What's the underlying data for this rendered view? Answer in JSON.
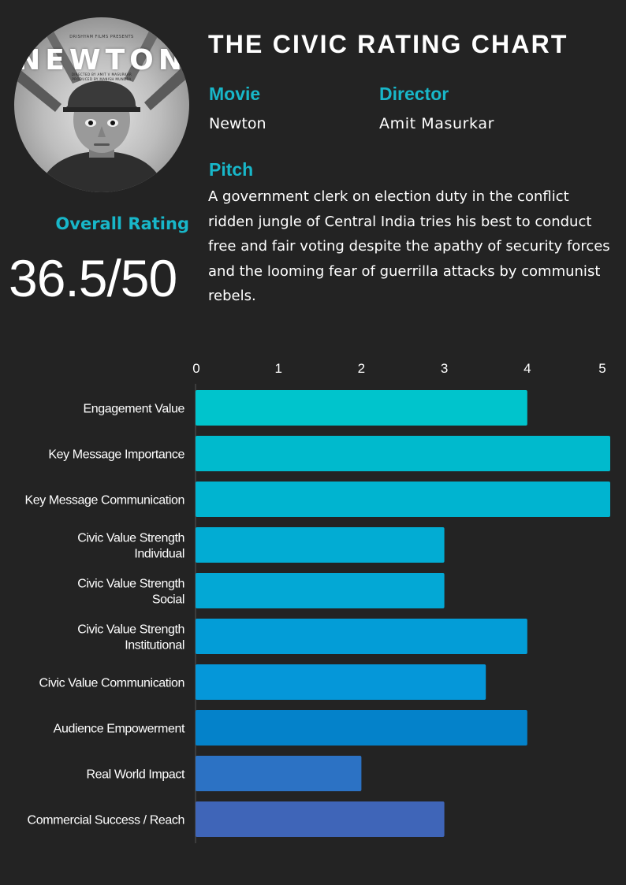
{
  "header": {
    "title": "THE CIVIC RATING CHART"
  },
  "poster": {
    "studio": "DRISHYAM FILMS PRESENTS",
    "title": "NEWTON",
    "credit_1": "DIRECTED BY AMIT V MASURKAR",
    "credit_2": "PRODUCED BY MANISH MUNDRA"
  },
  "movie": {
    "label": "Movie",
    "value": "Newton"
  },
  "director": {
    "label": "Director",
    "value": "Amit Masurkar"
  },
  "pitch": {
    "label": "Pitch",
    "text": "A government clerk on election duty in the conflict ridden jungle of Central India tries his best to conduct free and fair voting despite the apathy of security forces and the looming fear of guerrilla attacks by communist rebels."
  },
  "overall": {
    "label": "Overall Rating",
    "value": "36.5/50"
  },
  "colors": {
    "background": "#232323",
    "accent": "#18b7c9",
    "bars": [
      "#00c4cc",
      "#00bacd",
      "#00b4d0",
      "#02acd3",
      "#03a8d5",
      "#039dd7",
      "#0597d9",
      "#0482ca",
      "#2c72c4",
      "#3f65b8"
    ]
  },
  "chart_data": {
    "type": "bar",
    "orientation": "horizontal",
    "categories": [
      [
        "Engagement Value"
      ],
      [
        "Key Message Importance"
      ],
      [
        "Key Message Communication"
      ],
      [
        "Civic Value Strength",
        "Individual"
      ],
      [
        "Civic Value Strength",
        "Social"
      ],
      [
        "Civic Value Strength",
        "Institutional"
      ],
      [
        "Civic Value Communication"
      ],
      [
        "Audience Empowerment"
      ],
      [
        "Real World Impact"
      ],
      [
        "Commercial Success / Reach"
      ]
    ],
    "values": [
      4,
      5,
      5,
      3,
      3,
      4,
      3.5,
      4,
      2,
      3
    ],
    "xlim": [
      0,
      5
    ],
    "ticks": [
      "0",
      "1",
      "2",
      "3",
      "4",
      "5"
    ],
    "axis_position": "top",
    "grid": false,
    "title": "",
    "xlabel": "",
    "ylabel": ""
  }
}
